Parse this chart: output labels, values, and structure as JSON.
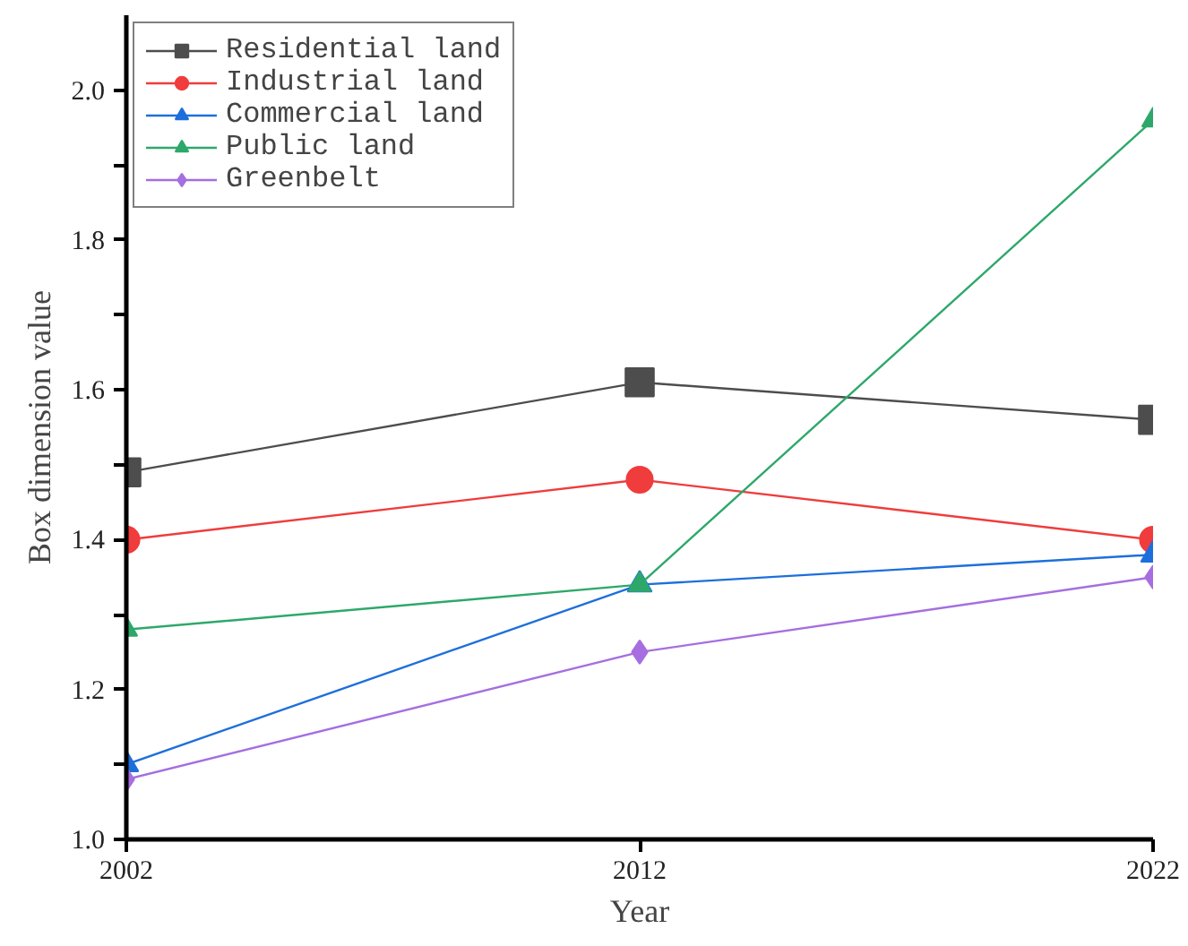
{
  "chart_data": {
    "type": "line",
    "xlabel": "Year",
    "ylabel": "Box dimension value",
    "x": [
      2002,
      2012,
      2022
    ],
    "xlim": [
      2002,
      2022
    ],
    "xticks": [
      2002,
      2012,
      2022
    ],
    "ylim": [
      1.0,
      2.1
    ],
    "yticks": [
      {
        "value": 1.0,
        "label": "1.0"
      },
      {
        "value": 1.1,
        "label": null
      },
      1.2,
      {
        "value": 1.3,
        "label": null
      },
      1.4,
      {
        "value": 1.5,
        "label": null
      },
      1.6,
      {
        "value": 1.7,
        "label": null
      },
      1.8,
      {
        "value": 1.9,
        "label": null
      },
      {
        "value": 2.0,
        "label": "2.0"
      }
    ],
    "legend": "top left",
    "grid": false,
    "line_style": "solid",
    "series": [
      {
        "name": "Residential land",
        "color": "#4d4d4d",
        "marker": "square",
        "values": [
          1.49,
          1.61,
          1.56
        ]
      },
      {
        "name": "Industrial land",
        "color": "#f03c3c",
        "marker": "circle",
        "values": [
          1.4,
          1.48,
          1.4
        ]
      },
      {
        "name": "Commercial land",
        "color": "#1e6fdc",
        "marker": "triangle",
        "values": [
          1.1,
          1.34,
          1.38
        ]
      },
      {
        "name": "Public land",
        "color": "#2ea86a",
        "marker": "triangle",
        "values": [
          1.28,
          1.34,
          1.96
        ]
      },
      {
        "name": "Greenbelt",
        "color": "#a66ee0",
        "marker": "diamond",
        "values": [
          1.08,
          1.25,
          1.35
        ]
      }
    ]
  }
}
